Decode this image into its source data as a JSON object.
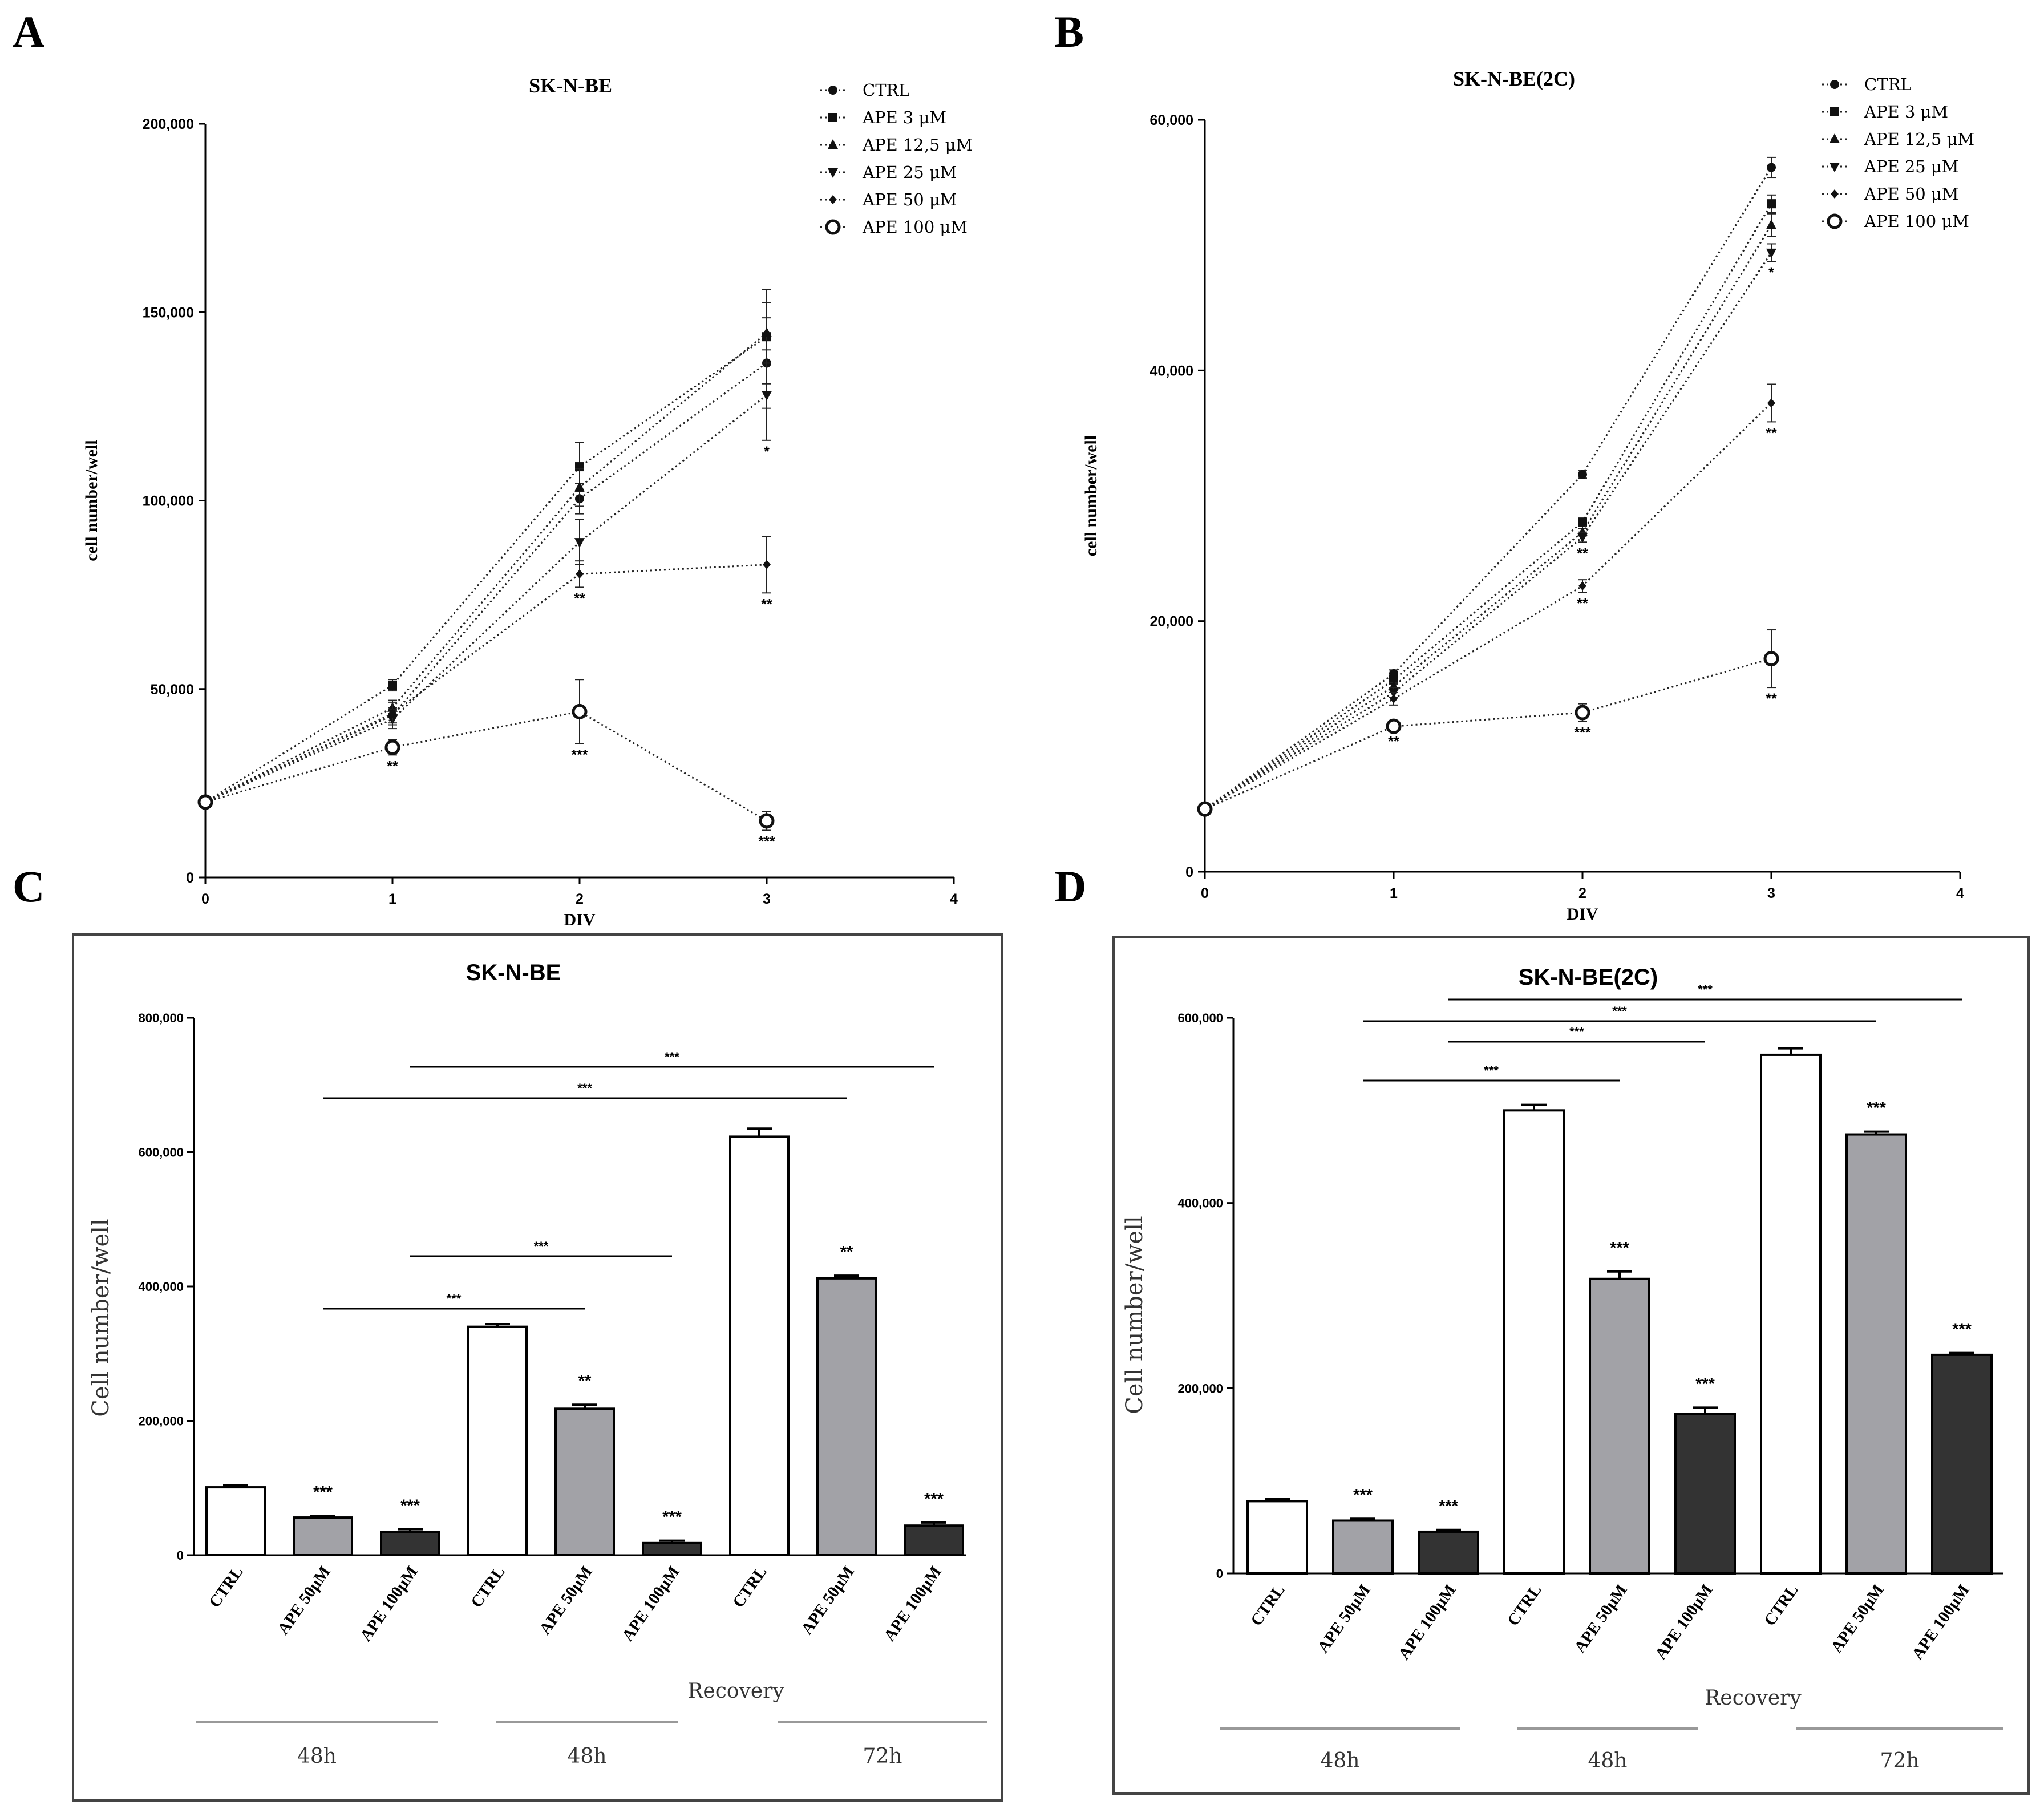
{
  "panels": {
    "A": "A",
    "B": "B",
    "C": "C",
    "D": "D"
  },
  "chart_data": [
    {
      "panel": "A",
      "type": "line",
      "title": "SK-N-BE",
      "xlabel": "DIV",
      "ylabel": "cell number/well",
      "x": [
        0,
        1,
        2,
        3
      ],
      "xlim": [
        0,
        4
      ],
      "ylim": [
        0,
        200000
      ],
      "x_ticks": [
        "0",
        "1",
        "2",
        "3",
        "4"
      ],
      "y_ticks": [
        "0",
        "50,000",
        "100,000",
        "150,000",
        "200,000"
      ],
      "legend_position": "top-right",
      "series": [
        {
          "name": "CTRL",
          "marker": "circle",
          "values": [
            20000,
            43000,
            100500,
            136500
          ],
          "errors": [
            0,
            2000,
            4000,
            12000
          ],
          "sig": [
            "",
            "",
            "",
            ""
          ]
        },
        {
          "name": "APE 3 μM",
          "marker": "square",
          "values": [
            20000,
            51000,
            109000,
            143500
          ],
          "errors": [
            0,
            1500,
            6500,
            12500
          ],
          "sig": [
            "",
            "",
            "",
            ""
          ]
        },
        {
          "name": "APE 12,5 μM",
          "marker": "triangle-up",
          "values": [
            20000,
            45000,
            103500,
            144500
          ],
          "errors": [
            0,
            2000,
            5000,
            8000
          ],
          "sig": [
            "",
            "",
            "",
            ""
          ]
        },
        {
          "name": "APE 25 μM",
          "marker": "triangle-down",
          "values": [
            20000,
            42000,
            89000,
            128000
          ],
          "errors": [
            0,
            2500,
            6000,
            12000
          ],
          "sig": [
            "",
            "",
            "",
            "*"
          ]
        },
        {
          "name": "APE 50 μM",
          "marker": "diamond",
          "values": [
            20000,
            43500,
            80500,
            83000
          ],
          "errors": [
            0,
            3000,
            3500,
            7500
          ],
          "sig": [
            "",
            "",
            "**",
            "**"
          ]
        },
        {
          "name": "APE 100 μM",
          "marker": "open-circle",
          "values": [
            20000,
            34500,
            44000,
            15000
          ],
          "errors": [
            0,
            2000,
            8500,
            2500
          ],
          "sig": [
            "",
            "**",
            "***",
            "***"
          ]
        }
      ]
    },
    {
      "panel": "B",
      "type": "line",
      "title": "SK-N-BE(2C)",
      "xlabel": "DIV",
      "ylabel": "cell number/well",
      "x": [
        0,
        1,
        2,
        3
      ],
      "xlim": [
        0,
        4
      ],
      "ylim": [
        0,
        60000
      ],
      "x_ticks": [
        "0",
        "1",
        "2",
        "3",
        "4"
      ],
      "y_ticks": [
        "0",
        "20,000",
        "40,000",
        "60,000"
      ],
      "legend_position": "top-right",
      "series": [
        {
          "name": "CTRL",
          "marker": "circle",
          "values": [
            5000,
            15800,
            31700,
            56200
          ],
          "errors": [
            0,
            300,
            300,
            800
          ],
          "sig": [
            "",
            "",
            "",
            ""
          ]
        },
        {
          "name": "APE 3 μM",
          "marker": "square",
          "values": [
            5000,
            15300,
            27900,
            53300
          ],
          "errors": [
            0,
            300,
            300,
            700
          ],
          "sig": [
            "",
            "",
            "",
            ""
          ]
        },
        {
          "name": "APE 12,5 μM",
          "marker": "triangle-up",
          "values": [
            5000,
            14800,
            27100,
            51600
          ],
          "errors": [
            0,
            300,
            300,
            900
          ],
          "sig": [
            "",
            "",
            "",
            ""
          ]
        },
        {
          "name": "APE 25 μM",
          "marker": "triangle-down",
          "values": [
            5000,
            14300,
            26700,
            49400
          ],
          "errors": [
            0,
            400,
            400,
            700
          ],
          "sig": [
            "",
            "",
            "**",
            "*"
          ]
        },
        {
          "name": "APE 50 μM",
          "marker": "diamond",
          "values": [
            5000,
            13800,
            22800,
            37400
          ],
          "errors": [
            0,
            500,
            500,
            1500
          ],
          "sig": [
            "",
            "",
            "**",
            "**"
          ]
        },
        {
          "name": "APE 100 μM",
          "marker": "open-circle",
          "values": [
            5000,
            11600,
            12700,
            17000
          ],
          "errors": [
            0,
            300,
            700,
            2300
          ],
          "sig": [
            "",
            "**",
            "***",
            "**"
          ]
        }
      ]
    },
    {
      "panel": "C",
      "type": "bar",
      "title": "SK-N-BE",
      "ylabel": "Cell number/well",
      "xlabel": "Recovery",
      "ylim": [
        0,
        800000
      ],
      "y_ticks": [
        "0",
        "200,000",
        "400,000",
        "600,000",
        "800,000"
      ],
      "categories": [
        "CTRL",
        "APE 50μM",
        "APE 100μM",
        "CTRL",
        "APE 50μM",
        "APE 100μM",
        "CTRL",
        "APE 50μM",
        "APE 100μM"
      ],
      "values": [
        101000,
        56000,
        34000,
        340000,
        218000,
        18000,
        623000,
        412000,
        44000
      ],
      "errors": [
        3000,
        2500,
        4500,
        4000,
        6000,
        3500,
        12000,
        4000,
        4500
      ],
      "fill": [
        "white",
        "grey",
        "dark",
        "white",
        "grey",
        "dark",
        "white",
        "grey",
        "dark"
      ],
      "sig": [
        "",
        "***",
        "***",
        "",
        "**",
        "***",
        "",
        "**",
        "***"
      ],
      "groups": [
        "48h",
        "48h",
        "72h"
      ],
      "comparisons": [
        {
          "from": 1,
          "to": 4,
          "label": "***"
        },
        {
          "from": 2,
          "to": 5,
          "label": "***"
        },
        {
          "from": 1,
          "to": 7,
          "label": "***"
        },
        {
          "from": 2,
          "to": 8,
          "label": "***"
        }
      ]
    },
    {
      "panel": "D",
      "type": "bar",
      "title": "SK-N-BE(2C)",
      "ylabel": "Cell number/well",
      "xlabel": "Recovery",
      "ylim": [
        0,
        600000
      ],
      "y_ticks": [
        "0",
        "200,000",
        "400,000",
        "600,000"
      ],
      "categories": [
        "CTRL",
        "APE 50μM",
        "APE 100μM",
        "CTRL",
        "APE 50μM",
        "APE 100μM",
        "CTRL",
        "APE 50μM",
        "APE 100μM"
      ],
      "values": [
        78000,
        57000,
        45000,
        500000,
        318000,
        172000,
        560000,
        474000,
        236000
      ],
      "errors": [
        2500,
        2000,
        2000,
        6000,
        8000,
        7000,
        7000,
        3000,
        2000
      ],
      "fill": [
        "white",
        "grey",
        "dark",
        "white",
        "grey",
        "dark",
        "white",
        "grey",
        "dark"
      ],
      "sig": [
        "",
        "***",
        "***",
        "",
        "***",
        "***",
        "",
        "***",
        "***"
      ],
      "groups": [
        "48h",
        "48h",
        "72h"
      ],
      "comparisons": [
        {
          "from": 1,
          "to": 4,
          "label": "***"
        },
        {
          "from": 2,
          "to": 5,
          "label": "***"
        },
        {
          "from": 1,
          "to": 7,
          "label": "***"
        },
        {
          "from": 2,
          "to": 8,
          "label": "***"
        }
      ]
    }
  ]
}
